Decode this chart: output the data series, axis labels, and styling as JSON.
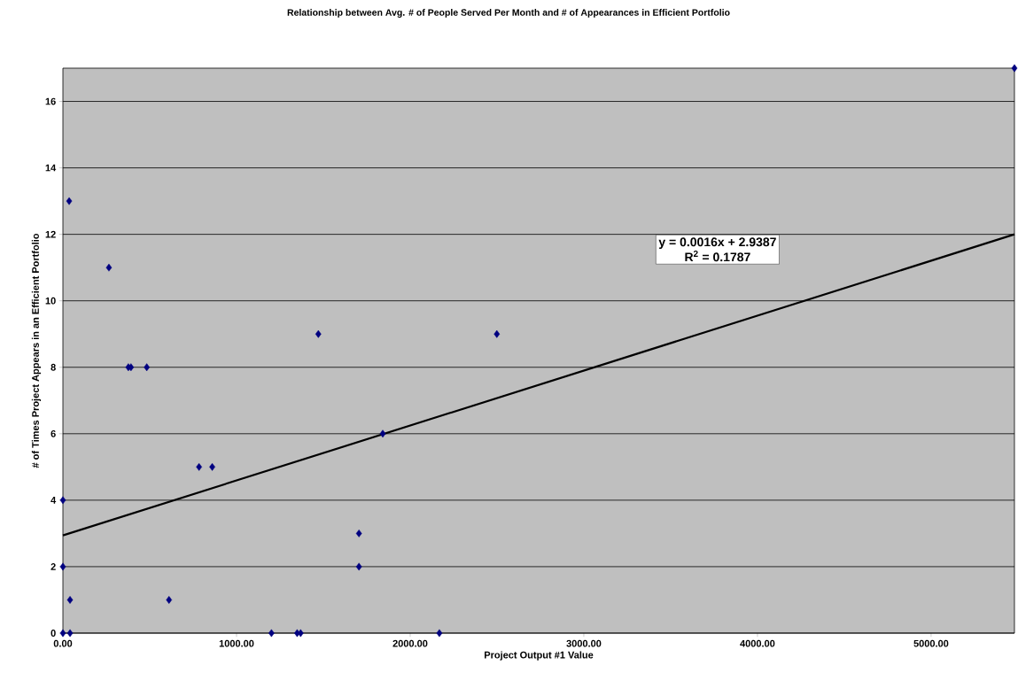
{
  "chart_data": {
    "type": "scatter",
    "title": "Relationship between Avg. # of People Served Per Month and # of Appearances in Efficient Portfolio",
    "xlabel": "Project Output #1 Value",
    "ylabel": "# of Times Project Appears in an Efficient Portfolio",
    "xlim": [
      0,
      5480
    ],
    "ylim": [
      0,
      17
    ],
    "xticks": [
      {
        "value": 0,
        "label": "0.00"
      },
      {
        "value": 1000,
        "label": "1000.00"
      },
      {
        "value": 2000,
        "label": "2000.00"
      },
      {
        "value": 3000,
        "label": "3000.00"
      },
      {
        "value": 4000,
        "label": "4000.00"
      },
      {
        "value": 5000,
        "label": "5000.00"
      }
    ],
    "yticks": [
      0,
      2,
      4,
      6,
      8,
      10,
      12,
      14,
      16
    ],
    "grid": "y",
    "annotations": [
      "y = 0.0016x + 2.9387",
      "R$^{2}$ = 0.1787"
    ],
    "series": [
      {
        "marker": "diamond",
        "color": "#000080",
        "x": [
          0,
          41,
          0,
          0,
          41,
          36,
          265,
          377,
          392,
          483,
          611,
          784,
          860,
          1201,
          1349,
          1369,
          1471,
          1705,
          1705,
          1842,
          2168,
          2499,
          5480
        ],
        "values": [
          0,
          0,
          2,
          4,
          1,
          13,
          11,
          8,
          8,
          8,
          1,
          5,
          5,
          0,
          0,
          0,
          9,
          3,
          2,
          6,
          0,
          9,
          17
        ]
      },
      {
        "type": "line",
        "marker": "none",
        "color": "#000000",
        "x": [
          0,
          5480
        ],
        "values": [
          2.94,
          12.0
        ]
      }
    ]
  }
}
